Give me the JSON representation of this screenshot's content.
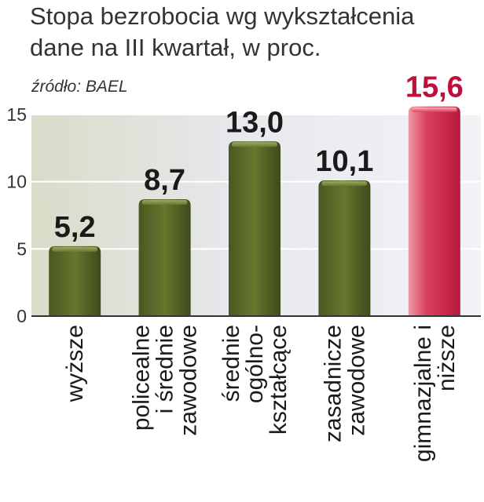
{
  "chart_data": {
    "type": "bar",
    "title": "Stopa bezrobocia wg wykształcenia",
    "subtitle": "dane na III kwartał, w proc.",
    "source": "źródło: BAEL",
    "categories": [
      [
        "wyższe"
      ],
      [
        "policealne",
        "i średnie",
        "zawodowe"
      ],
      [
        "średnie",
        "ogólno-",
        "kształcące"
      ],
      [
        "zasadnicze",
        "zawodowe"
      ],
      [
        "gimnazjalne i",
        "niższe"
      ]
    ],
    "values": [
      5.2,
      8.7,
      13.0,
      10.1,
      15.6
    ],
    "value_labels": [
      "5,2",
      "8,7",
      "13,0",
      "10,1",
      "15,6"
    ],
    "highlight_index": 4,
    "ylim": [
      0,
      15
    ],
    "yticks": [
      0,
      5,
      10,
      15
    ],
    "grid": true,
    "colors": {
      "bar": "#5a6a26",
      "bar_dark": "#3c4718",
      "bar_light": "#8a9a4e",
      "highlight": "#c21a3e",
      "highlight_light": "#ee8a98",
      "highlight_text": "#c0103a",
      "text": "#1a1a1a",
      "axis": "#333333"
    }
  }
}
